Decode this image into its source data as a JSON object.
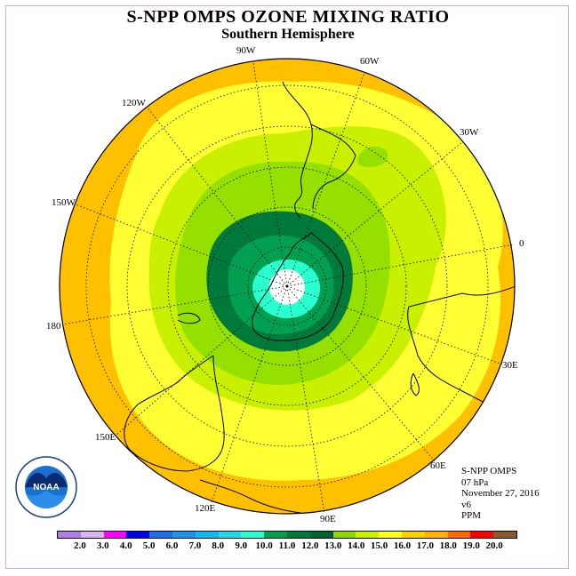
{
  "title": "S-NPP OMPS OZONE MIXING RATIO",
  "subtitle": "Southern Hemisphere",
  "longitude_labels": {
    "lon_90w": "90W",
    "lon_60w": "60W",
    "lon_30w": "30W",
    "lon_0": "0",
    "lon_30e": "30E",
    "lon_60e": "60E",
    "lon_90e": "90E",
    "lon_120e": "120E",
    "lon_150e": "150E",
    "lon_180": "180",
    "lon_150w": "150W",
    "lon_120w": "120W"
  },
  "info": {
    "instrument": "S-NPP OMPS",
    "level": "07 hPa",
    "date": "November 27, 2016",
    "version": "v6",
    "units": "PPM"
  },
  "logo": {
    "text": "NOAA",
    "ring_text": "NATIONAL OCEANIC AND ATMOSPHERIC ADMINISTRATION · U.S. DEPARTMENT OF COMMERCE"
  },
  "color_scale": {
    "ticks": [
      "2.0",
      "3.0",
      "4.0",
      "5.0",
      "6.0",
      "7.0",
      "8.0",
      "9.0",
      "10.0",
      "11.0",
      "12.0",
      "13.0",
      "14.0",
      "15.0",
      "16.0",
      "17.0",
      "18.0",
      "19.0",
      "20.0"
    ],
    "colors": [
      "#b07ee6",
      "#d9b3f2",
      "#ff00ff",
      "#0000ee",
      "#1e6fe6",
      "#1a96f0",
      "#10b8f0",
      "#22d8e8",
      "#2affd0",
      "#00a050",
      "#007a3a",
      "#006030",
      "#8cd800",
      "#c8f000",
      "#ffff22",
      "#ffd000",
      "#ffb300",
      "#ff6a00",
      "#ff0000",
      "#8b5a2b"
    ]
  },
  "map_colors": {
    "band_16_17": "#ffc000",
    "band_15_16": "#ffff33",
    "band_14_15": "#c8f000",
    "band_13_14": "#96e000",
    "band_12_13": "#007a3a",
    "band_11_12": "#00a050",
    "band_9_10": "#2affd0",
    "band_below": "#ffffff"
  }
}
